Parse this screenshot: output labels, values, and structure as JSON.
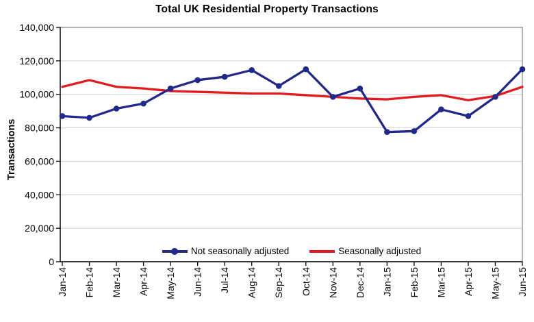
{
  "chart_data": {
    "type": "line",
    "title": "Total UK Residential Property Transactions",
    "ylabel": "Transactions",
    "xlabel": "",
    "ylim": [
      0,
      140000
    ],
    "ytick_step": 20000,
    "ytick_labels": [
      "0",
      "20,000",
      "40,000",
      "60,000",
      "80,000",
      "100,000",
      "120,000",
      "140,000"
    ],
    "grid": "horizontal",
    "legend_position": "bottom-center-inside-plot",
    "categories": [
      "Jan-14",
      "Feb-14",
      "Mar-14",
      "Apr-14",
      "May-14",
      "Jun-14",
      "Jul-14",
      "Aug-14",
      "Sep-14",
      "Oct-14",
      "Nov-14",
      "Dec-14",
      "Jan-15",
      "Feb-15",
      "Mar-15",
      "Apr-15",
      "May-15",
      "Jun-15"
    ],
    "series": [
      {
        "name": "Seasonally adjusted",
        "color": "#E41B1E",
        "marker": "none",
        "values": [
          104500,
          108500,
          104500,
          103500,
          102000,
          101500,
          101000,
          100500,
          100500,
          99500,
          98500,
          97500,
          97000,
          98500,
          99500,
          96500,
          99000,
          104500
        ]
      },
      {
        "name": "Not seasonally adjusted",
        "color": "#20288C",
        "marker": "circle",
        "values": [
          87000,
          86000,
          91500,
          94500,
          103500,
          108500,
          110500,
          114500,
          105000,
          115000,
          98500,
          103500,
          77500,
          78000,
          91000,
          87000,
          98500,
          115000
        ]
      }
    ],
    "colors": {
      "gridline": "#D9D9D9",
      "plot_border": "#7F7F7F",
      "axis": "#000000",
      "text": "#000000"
    }
  }
}
